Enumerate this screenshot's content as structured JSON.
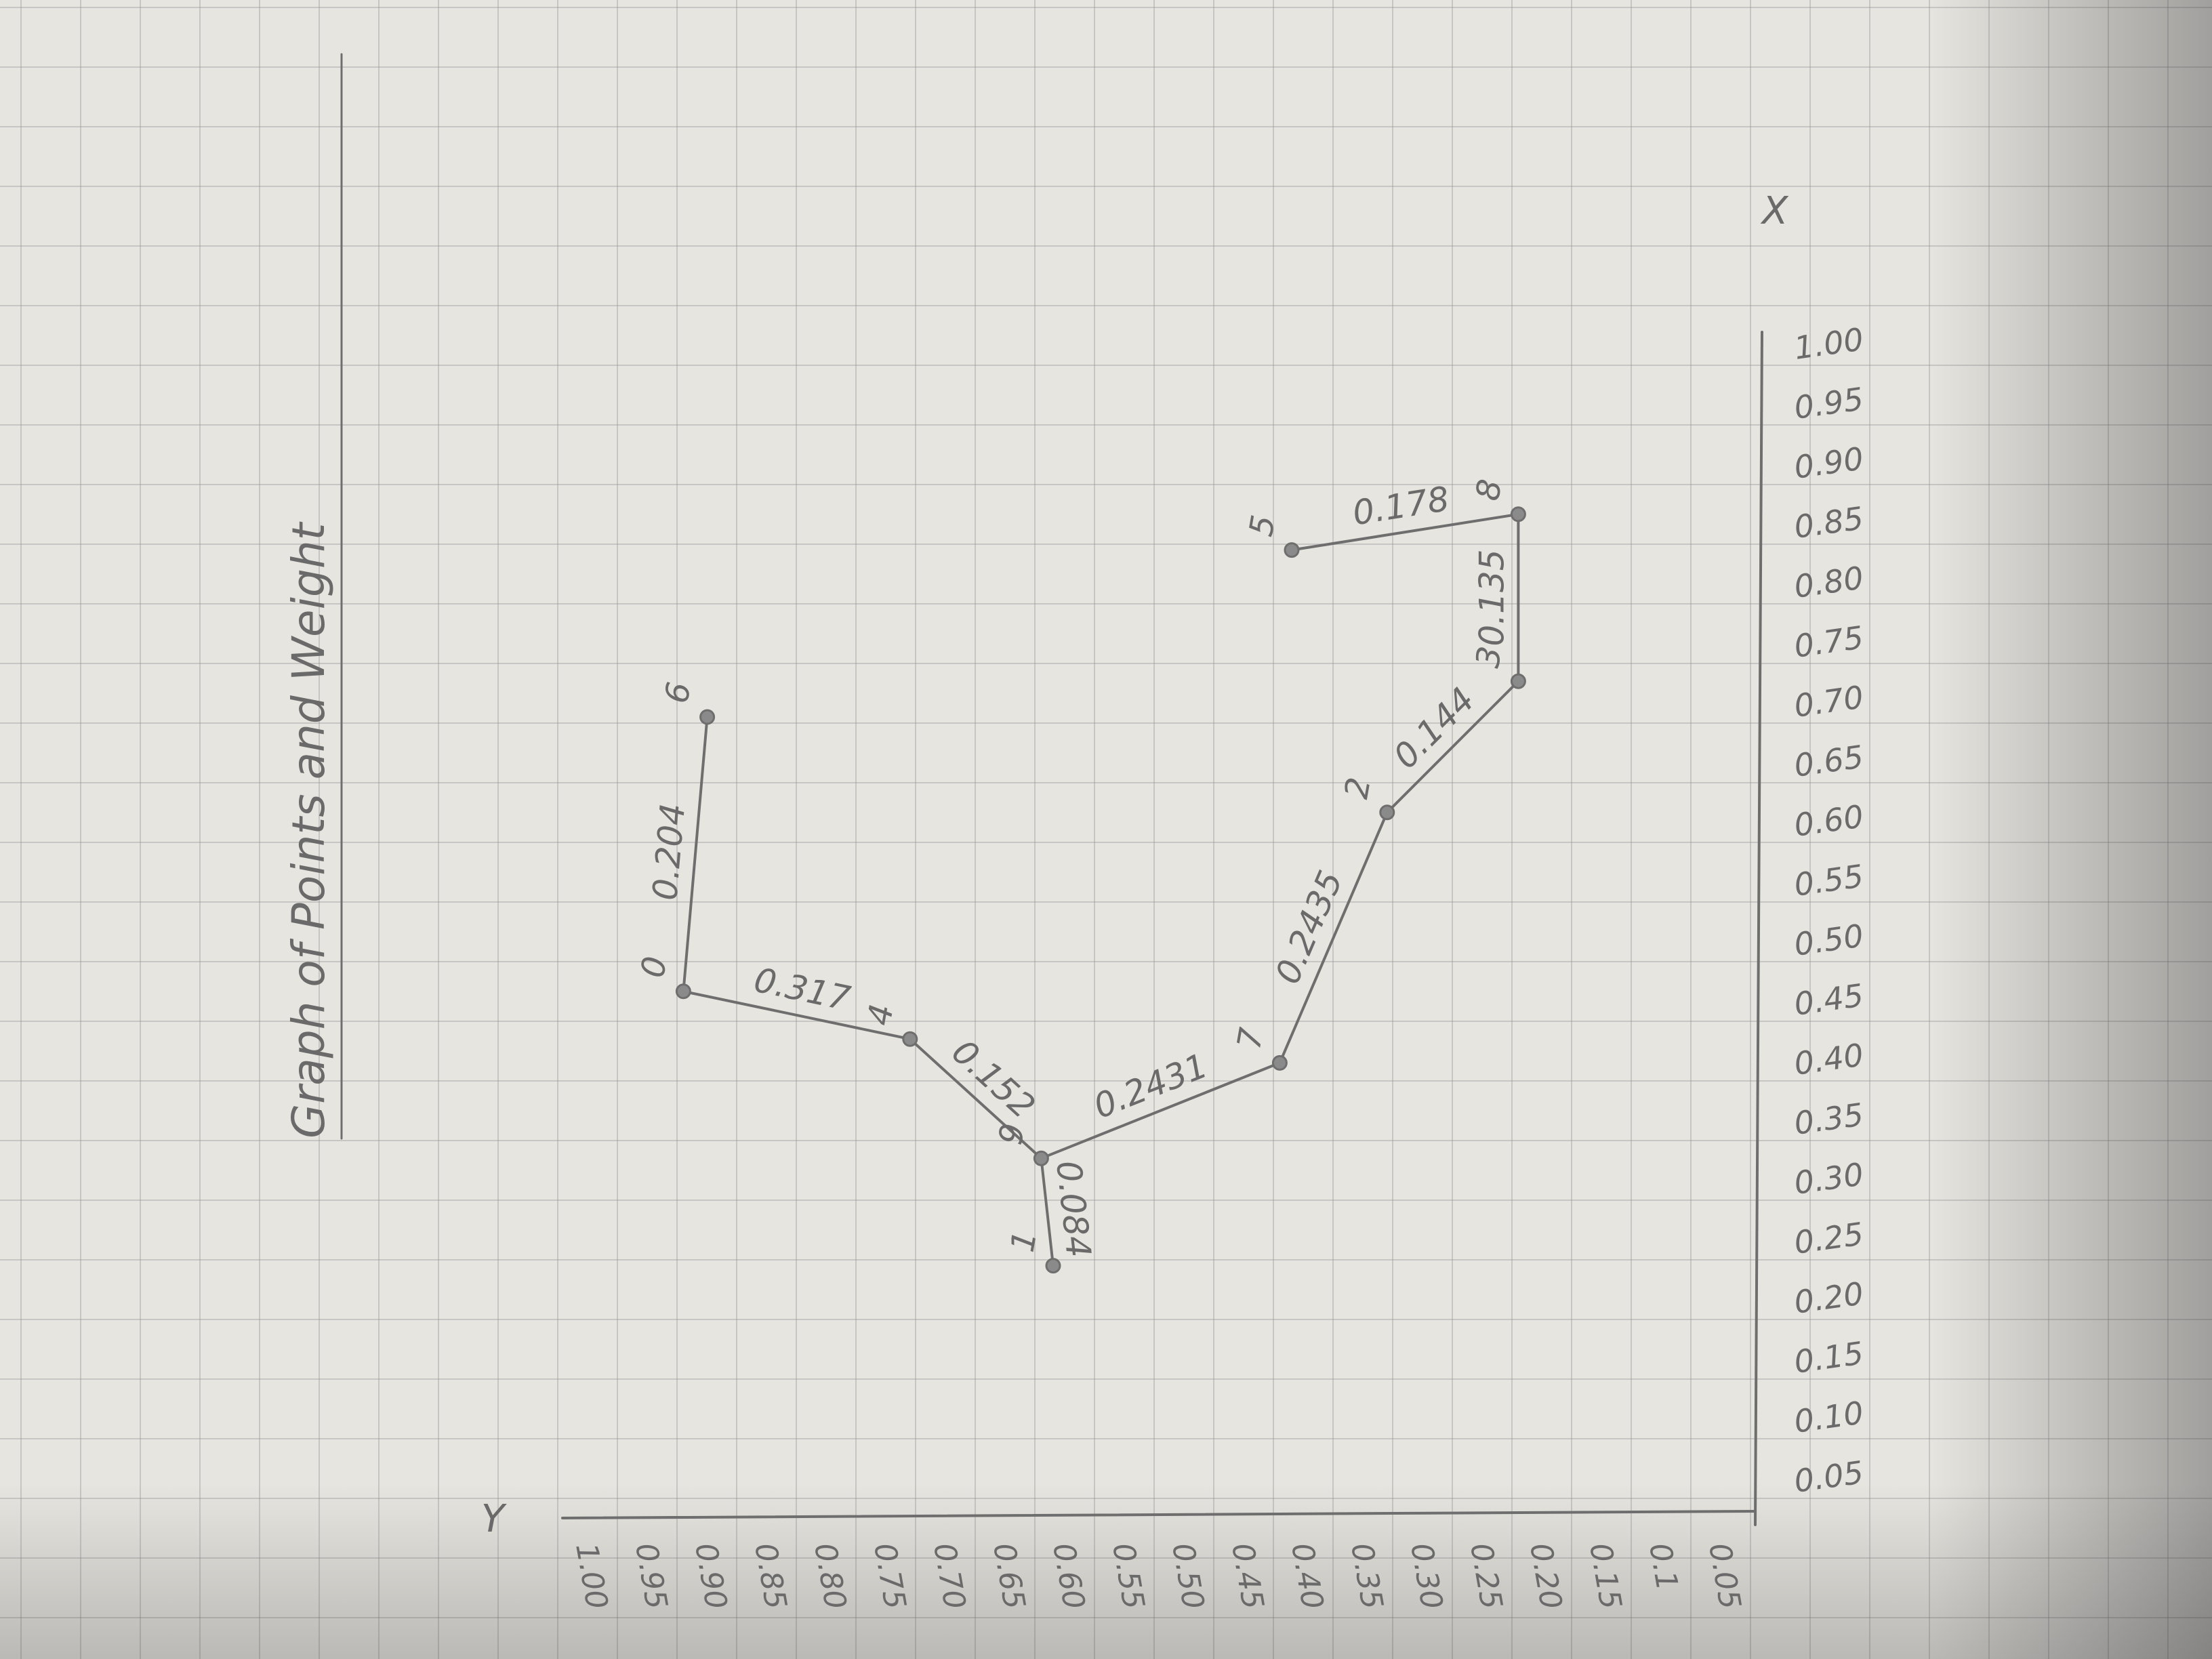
{
  "colors": {
    "pencil": "#6e6e6e",
    "paper": "#e7e5df",
    "grid": "#9a9aa0"
  },
  "chart_data": {
    "type": "line",
    "title": "Graph of Points and Weight",
    "xlabel": "X",
    "ylabel": "Y",
    "xlim": [
      0,
      1.0
    ],
    "ylim": [
      0,
      1.0
    ],
    "x_ticks": [
      "0.05",
      "0.10",
      "0.15",
      "0.20",
      "0.25",
      "0.30",
      "0.35",
      "0.40",
      "0.45",
      "0.50",
      "0.55",
      "0.60",
      "0.65",
      "0.70",
      "0.75",
      "0.80",
      "0.85",
      "0.90",
      "0.95",
      "1.00"
    ],
    "y_ticks": [
      "1.00",
      "0.95",
      "0.90",
      "0.85",
      "0.80",
      "0.75",
      "0.70",
      "0.65",
      "0.60",
      "0.55",
      "0.50",
      "0.45",
      "0.40",
      "0.35",
      "0.30",
      "0.25",
      "0.20",
      "0.15",
      "0.1",
      "0.05"
    ],
    "points": [
      {
        "label": "1",
        "x": 0.24,
        "y": 0.6
      },
      {
        "label": "9",
        "x": 0.33,
        "y": 0.61
      },
      {
        "label": "4",
        "x": 0.43,
        "y": 0.72
      },
      {
        "label": "0",
        "x": 0.47,
        "y": 0.91
      },
      {
        "label": "6",
        "x": 0.7,
        "y": 0.89
      },
      {
        "label": "7",
        "x": 0.41,
        "y": 0.41
      },
      {
        "label": "2",
        "x": 0.62,
        "y": 0.32
      },
      {
        "label": "3",
        "x": 0.73,
        "y": 0.21
      },
      {
        "label": "8",
        "x": 0.87,
        "y": 0.21
      },
      {
        "label": "5",
        "x": 0.84,
        "y": 0.4
      }
    ],
    "edges": [
      {
        "from": "1",
        "to": "9",
        "weight": "0.084"
      },
      {
        "from": "9",
        "to": "4",
        "weight": "0.152"
      },
      {
        "from": "4",
        "to": "0",
        "weight": "0.317"
      },
      {
        "from": "0",
        "to": "6",
        "weight": "0.204"
      },
      {
        "from": "9",
        "to": "7",
        "weight": "0.2431"
      },
      {
        "from": "7",
        "to": "2",
        "weight": "0.2435"
      },
      {
        "from": "2",
        "to": "3",
        "weight": "0.144"
      },
      {
        "from": "3",
        "to": "8",
        "weight": "0.135"
      },
      {
        "from": "8",
        "to": "5",
        "weight": "0.178"
      }
    ]
  }
}
